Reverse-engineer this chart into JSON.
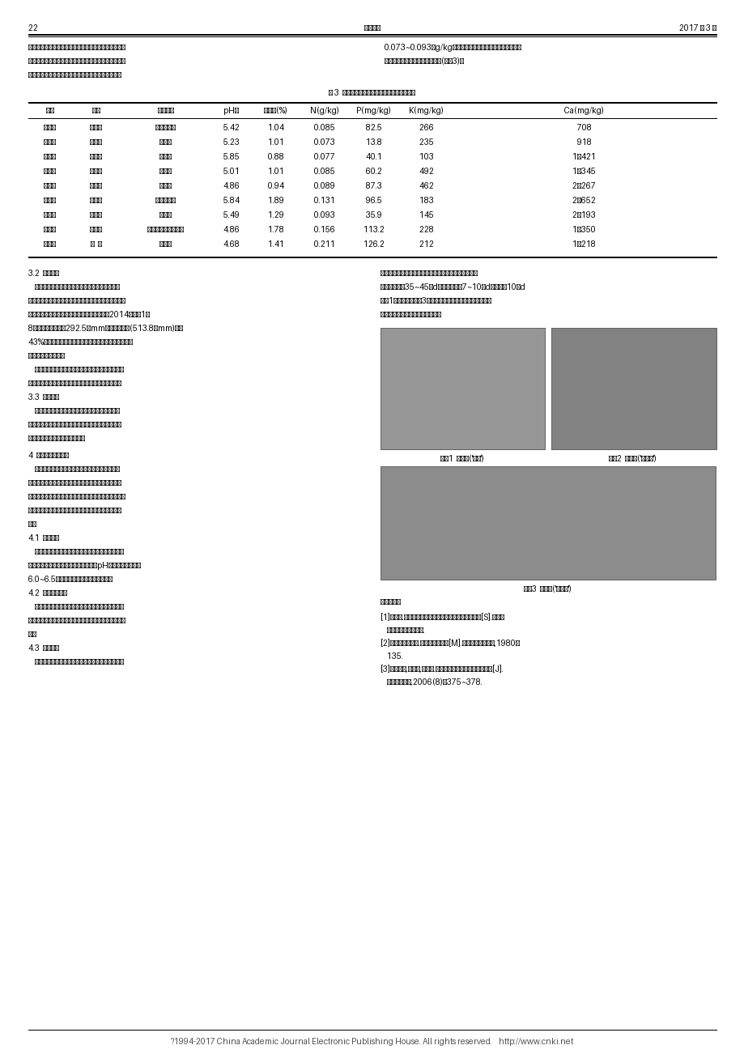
{
  "page_number": "22",
  "journal_name": "北方果树",
  "year_month": "2017 年 3 月",
  "intro_left_lines": [
    "症病却很重。从本次调查还可以看出，土壤氮量严重不",
    "足是导致缺钙症发生的重要原因之一。如赵国刚、李汉",
    "国、韩玉丰、周宝池、李天旭等园的土壤氮含量仅为"
  ],
  "intro_right_lines": [
    "0.073~0.093 g/kg，因缺氮而树体发育不良，根系吸收能",
    "力必然很差，对钙的吸收更困难(表 3)。"
  ],
  "table_title": "表 3  几个缺钙症发生严重果园的土壤养分含量",
  "table_headers": [
    "园主",
    "品种",
    "症症表现",
    "pH値",
    "有机质(%)",
    "N(g/kg)",
    "P(mg/kg)",
    "K(mg/kg)",
    "Ca(mg/kg)"
  ],
  "table_data": [
    [
      "赵国刚",
      "乔纳金",
      "软绵，落果",
      "5.42",
      "1.04",
      "0.085",
      "82.5",
      "266",
      "708"
    ],
    [
      "李汉国",
      "红富士",
      "苦痘病",
      "5.23",
      "1.01",
      "0.073",
      "13.8",
      "235",
      "918"
    ],
    [
      "韩玉丰",
      "大国光",
      "苦痘病",
      "5.85",
      "0.88",
      "0.077",
      "40.1",
      "103",
      "1 421"
    ],
    [
      "周宝池",
      "红富士",
      "苦痘病",
      "5.01",
      "1.01",
      "0.085",
      "60.2",
      "492",
      "1 345"
    ],
    [
      "李天旭",
      "红富士",
      "苦痘病",
      "4.86",
      "0.94",
      "0.089",
      "87.3",
      "462",
      "2 267"
    ],
    [
      "魏金怀",
      "乔纳金",
      "软绵，落果",
      "5.84",
      "1.89",
      "0.131",
      "96.5",
      "183",
      "2 652"
    ],
    [
      "刘志学",
      "乔纳金",
      "苦痘病",
      "5.49",
      "1.29",
      "0.093",
      "35.9",
      "145",
      "2 193"
    ],
    [
      "赵红春",
      "金矮生",
      "苦痘病，软绵，落果",
      "4.86",
      "1.78",
      "0.156",
      "113.2",
      "228",
      "1 350"
    ],
    [
      "赵国文",
      "秋  锦",
      "苦痘病",
      "4.68",
      "1.41",
      "0.211",
      "126.2",
      "212",
      "1 218"
    ]
  ],
  "section_32_title": "3.2  土壤水分",
  "sec32_left": [
    "    土壤含水量也直接影响果树根系对钙的吸收。较",
    "长时间的干旱，果树根系的生长和叶片蒸腾活动减弱，",
    "影响钙的吸收。绥中地区极易春夏干旱。如 2014 年 1—",
    "8 月全县降水量 292.5 mm，较历年同期(513.8 mm)偏少",
    "43%，而绝大多数果园灸溺条件不足，直接影响营养特",
    "别是钙营养的吸收。",
    "    降雨过多，土壤水分饱和，土壤通气严重不良，根",
    "系发育受阻或死亡，也能导致或加重缺钙症的发生。"
  ],
  "section_33_title": "3.3  其他因素",
  "sec33_lines": [
    "    调查表明，结果少的旺长树发生苦痘病比结果多",
    "的树严重，这是因为有限的钙更多地被旺盛生长且蒸",
    "腾作用强的枝梢叶片争夺所致。"
  ],
  "section_4_title": "4  应采取的必要措施",
  "sec4_lines": [
    "    由于缺钙原因的复杂性和具体果园的特殊性，解",
    "决缺钙问题必须从加强综合管理入手。如加强果园土",
    "肥水管理、科学的整形修剪和病虫害防治，以使强壮树",
    "势，提高树体的适应性和抗逆性，减少各种病害的发",
    "生。"
  ],
  "section_41_title": "4.1  改良土壤",
  "sec41_lines": [
    "    大力提倡增施农家肥，果园生草覆盖。鉴于果园土",
    "壤偏酸，建议施用石灰，以提高土壤 pH 値，使其维持在",
    "6.0~6.5 范围内。同时兼有补钙作用。"
  ],
  "section_42_title": "4.2  增氮控磷控龾",
  "sec42_lines": [
    "    应增施氮肥，控制磷肥和龾肥。对于缺钙症发生较",
    "重的果园，要减少龾肥的施用。选择高氮低龾型的复合",
    "肥。"
  ],
  "section_43_title": "4.3  叶面补钙",
  "sec43_lines": [
    "    对果树而言，钙是大量元素，施钙应以土施为主，"
  ],
  "right_col_top_lines": [
    "并要与有机肘混施，以提高钙的利用率。叶面喷施要重",
    "点抓住落花后35~45 d内，自落花后7~10 d开始，每10 d",
    "喷 1次钙肥，连续 3 次。常用钙肥有硫酸钙、氨基酸钙",
    "等，喷施浓度请参照产品说明书。"
  ],
  "fig1_caption": "图 1  苦痘病('牛南')",
  "fig2_caption": "图 2  痘班病('红富士')",
  "fig3_caption": "图 3  水心病('红安卡')",
  "ref_title": "参考文献：",
  "ref_lines": [
    "[1] 李柱.果园土壤有机质及养分含量高低的判断标准[S].中国农",
    "    业科学院果树研究所.",
    "[2] 河北农业大学.果树栽培学总论[M].北京：农业出版社,1980；",
    "    135.",
    "[3] 王建国,宋守景,吴国良.苹果树的钙营养及补钙技术综述[J].",
    "    中国农学通报,2006(8)：375~378."
  ],
  "footer": "?1994-2017 China Academic Journal Electronic Publishing House. All rights reserved.    http://www.cnki.net"
}
